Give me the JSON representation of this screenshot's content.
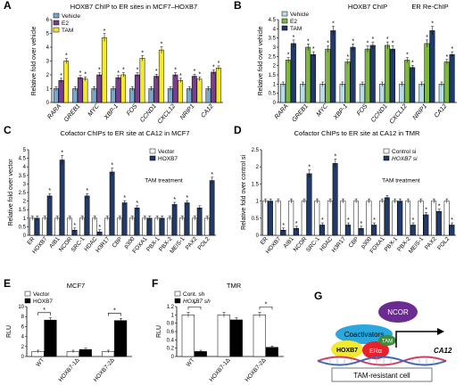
{
  "chart_data": [
    {
      "panel": "A",
      "type": "bar",
      "title": "HOXB7 ChIP to ER sites in MCF7–HOXB7",
      "ylabel": "Relative fold over vehicle",
      "ylim": [
        0,
        6
      ],
      "yticks": [
        0,
        1,
        2,
        3,
        4,
        5,
        6
      ],
      "categories": [
        "RARA",
        "GREB1",
        "MYC",
        "XBP-1",
        "FOS",
        "CCND1",
        "CXCL12",
        "NRIP1",
        "CA12"
      ],
      "italic_categories": true,
      "legend": [
        "Vehicle",
        "E2",
        "TAM"
      ],
      "series": [
        {
          "name": "Vehicle",
          "color": "#7aa8c9",
          "values": [
            1,
            1,
            1,
            1,
            1,
            1,
            1,
            1,
            1
          ]
        },
        {
          "name": "E2",
          "color": "#7a3e8f",
          "values": [
            1.6,
            1.8,
            2.0,
            1.8,
            2.0,
            1.9,
            2.0,
            1.9,
            2.2
          ]
        },
        {
          "name": "TAM",
          "color": "#f4ea29",
          "values": [
            3.0,
            1.7,
            4.7,
            2.0,
            3.2,
            3.8,
            1.6,
            1.7,
            2.5
          ]
        }
      ],
      "stars": [
        [
          1,
          2
        ],
        [
          1,
          2
        ],
        [
          1,
          2
        ],
        [
          1,
          2
        ],
        [
          1,
          2
        ],
        [
          1,
          2
        ],
        [
          1,
          2
        ],
        [
          1,
          2
        ],
        [
          1,
          2
        ]
      ]
    },
    {
      "panel": "B",
      "type": "bar",
      "title": "HOXB7 ChIP",
      "title2": "ER Re-ChIP",
      "ylabel": "Relative fold over vehicle",
      "ylim": [
        0,
        4.5
      ],
      "yticks": [
        0,
        0.5,
        1,
        1.5,
        2,
        2.5,
        3,
        3.5,
        4,
        4.5
      ],
      "categories": [
        "RARA",
        "GREB1",
        "MYC",
        "XBP-1",
        "FOS",
        "CCND1",
        "CXCL12",
        "NRIP1",
        "CA12"
      ],
      "italic_categories": true,
      "legend": [
        "Vehicle",
        "E2",
        "TAM"
      ],
      "series": [
        {
          "name": "Vehicle",
          "color": "#b4dde8",
          "values": [
            1,
            1,
            1,
            1,
            1,
            1,
            1,
            1,
            1
          ]
        },
        {
          "name": "E2",
          "color": "#7eb843",
          "values": [
            2.3,
            3.0,
            2.9,
            2.2,
            2.9,
            3.1,
            2.3,
            3.2,
            2.2
          ]
        },
        {
          "name": "TAM",
          "color": "#1f3a6b",
          "values": [
            3.2,
            2.6,
            3.9,
            3.0,
            3.1,
            2.9,
            1.9,
            3.9,
            2.6
          ]
        }
      ],
      "stars": [
        [
          1,
          2
        ],
        [
          1,
          2
        ],
        [
          1,
          2
        ],
        [
          1,
          2
        ],
        [
          1,
          2
        ],
        [
          1,
          2
        ],
        [
          1,
          2
        ],
        [
          1,
          2
        ],
        [
          1,
          2
        ]
      ]
    },
    {
      "panel": "C",
      "type": "bar",
      "title": "Cofactor ChIPs to ER site at CA12 in MCF7",
      "ylabel": "Relative fold over vector",
      "ylim": [
        0,
        5
      ],
      "yticks": [
        0,
        0.5,
        1,
        1.5,
        2,
        2.5,
        3,
        3.5,
        4,
        4.5,
        5
      ],
      "annotation": "TAM treatment",
      "categories": [
        "ER",
        "HOXB7",
        "AIB1",
        "NCOR",
        "SRC-1",
        "HDAC",
        "H3R17",
        "CBP",
        "p300",
        "FOXA1",
        "PBX-1",
        "PBX-2",
        "MEIS-1",
        "PAX2",
        "POL2"
      ],
      "legend": [
        "Vector",
        "HOXB7"
      ],
      "series": [
        {
          "name": "Vector",
          "color": "#ffffff",
          "values": [
            1,
            1,
            1,
            1,
            1,
            1,
            1,
            1,
            1,
            1,
            1,
            1,
            1,
            1,
            1
          ]
        },
        {
          "name": "HOXB7",
          "color": "#1f3a6b",
          "values": [
            1.0,
            2.3,
            4.4,
            0.3,
            2.3,
            0.2,
            3.7,
            1.9,
            1.6,
            1.0,
            1.0,
            1.8,
            1.9,
            1.6,
            3.2
          ]
        }
      ],
      "stars": [
        [],
        [
          1
        ],
        [
          1
        ],
        [
          1
        ],
        [
          1
        ],
        [
          1
        ],
        [
          1
        ],
        [
          1
        ],
        [
          1
        ],
        [],
        [],
        [
          1
        ],
        [
          1
        ],
        [],
        [
          1
        ]
      ]
    },
    {
      "panel": "D",
      "type": "bar",
      "title": "Cofactor ChIPs to ER site at CA12 in TMR",
      "ylabel": "Relative fold over control si",
      "ylim": [
        0,
        2.5
      ],
      "yticks": [
        0,
        0.5,
        1,
        1.5,
        2,
        2.5
      ],
      "annotation": "TAM treatment",
      "categories": [
        "ER",
        "HOXB7",
        "AIB1",
        "NCOR",
        "SRC-1",
        "HDAC",
        "H3R17",
        "CBP",
        "p300",
        "FOXA1",
        "PBX-1",
        "PBX-2",
        "MEIS-1",
        "PAX2",
        "POL2"
      ],
      "legend": [
        "Control si",
        "HOXB7 si"
      ],
      "series": [
        {
          "name": "Control si",
          "color": "#ffffff",
          "values": [
            1,
            1,
            1,
            1,
            1,
            1,
            1,
            1,
            1,
            1,
            1,
            1,
            1,
            1,
            1
          ]
        },
        {
          "name": "HOXB7 si",
          "color": "#1f3a6b",
          "values": [
            1.0,
            0.15,
            0.2,
            1.8,
            0.3,
            2.1,
            0.3,
            0.2,
            0.3,
            1.1,
            1.0,
            0.3,
            0.6,
            0.7,
            0.3
          ]
        }
      ],
      "stars": [
        [],
        [
          1
        ],
        [
          1
        ],
        [
          1
        ],
        [
          1
        ],
        [
          1
        ],
        [
          1
        ],
        [
          1
        ],
        [
          1
        ],
        [],
        [],
        [
          1
        ],
        [
          1
        ],
        [
          1
        ],
        [
          1
        ]
      ]
    },
    {
      "panel": "E",
      "type": "bar",
      "title": "MCF7",
      "ylabel": "RLU",
      "ylim": [
        0,
        10
      ],
      "yticks": [
        0,
        2,
        4,
        6,
        8,
        10
      ],
      "categories": [
        "WT",
        "HOXB7-1Δ",
        "HOXB7-2Δ"
      ],
      "legend": [
        "Vector",
        "HOXB7"
      ],
      "series": [
        {
          "name": "Vector",
          "color": "#ffffff",
          "values": [
            1.0,
            1.0,
            1.0
          ]
        },
        {
          "name": "HOXB7",
          "color": "#000000",
          "values": [
            7.3,
            1.4,
            7.2
          ]
        }
      ],
      "brackets": [
        0,
        2
      ]
    },
    {
      "panel": "F",
      "type": "bar",
      "title": "TMR",
      "ylabel": "RLU",
      "ylim": [
        0,
        1.2
      ],
      "yticks": [
        0,
        0.2,
        0.4,
        0.6,
        0.8,
        1.0,
        1.2
      ],
      "categories": [
        "WT",
        "HOXB7-1Δ",
        "HOXB7-2Δ"
      ],
      "legend": [
        "Cont. sh",
        "HOXB7 sh"
      ],
      "series": [
        {
          "name": "Cont. sh",
          "color": "#ffffff",
          "values": [
            1.0,
            1.0,
            1.0
          ]
        },
        {
          "name": "HOXB7 sh",
          "color": "#000000",
          "values": [
            0.12,
            0.88,
            0.22
          ]
        }
      ],
      "brackets": [
        0,
        2
      ]
    }
  ],
  "panel_labels": [
    "A",
    "B",
    "C",
    "D",
    "E",
    "F",
    "G"
  ],
  "diagram": {
    "ncor": "NCOR",
    "coactivators": "Coactivators",
    "tam": "TAM",
    "hoxb7": "HOXB7",
    "er": "ERα",
    "gene": "CA12",
    "cell": "TAM-resistant cell"
  },
  "colors": {
    "ncor": "#6b2c91",
    "coactivators": "#2aa7dc",
    "tam": "#3d8c3a",
    "hoxb7": "#f4ea29",
    "er": "#e8202a"
  }
}
